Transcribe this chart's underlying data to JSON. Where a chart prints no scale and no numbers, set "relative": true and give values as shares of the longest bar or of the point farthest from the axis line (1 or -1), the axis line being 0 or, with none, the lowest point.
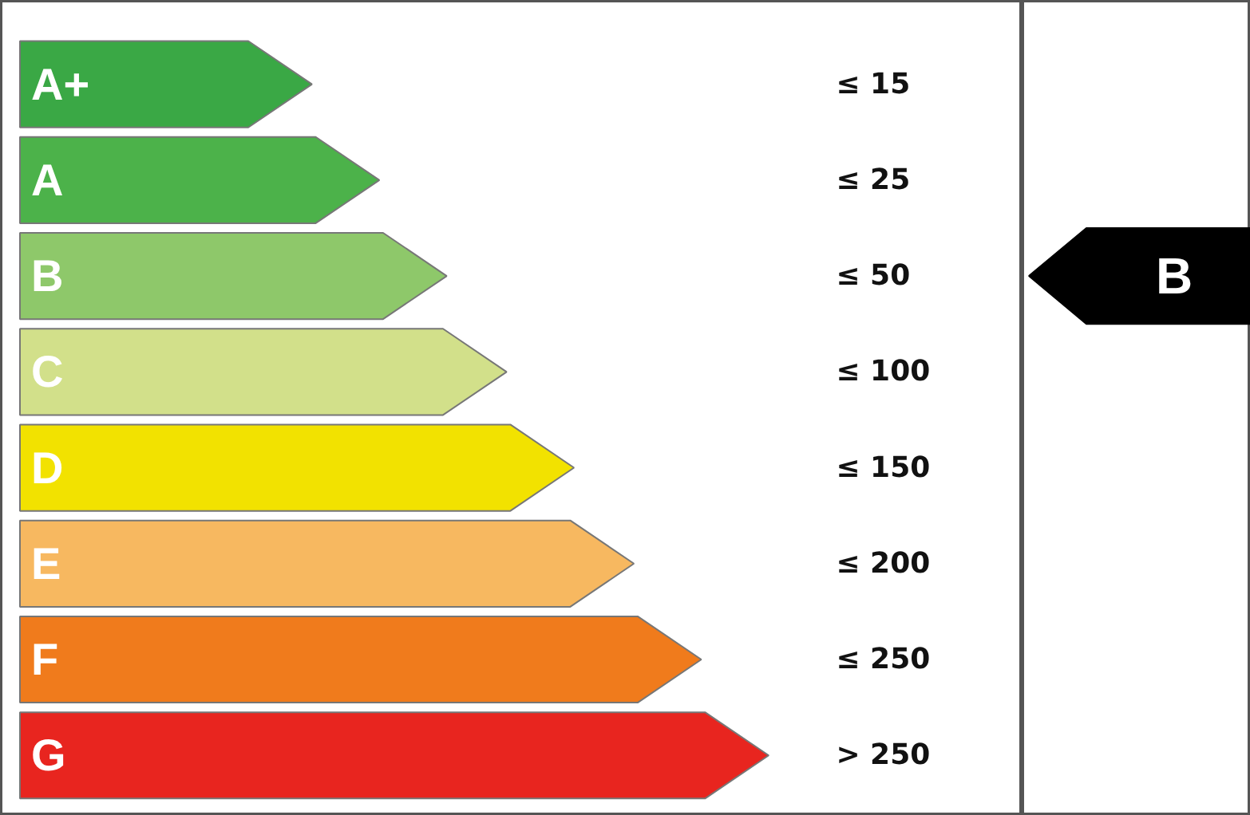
{
  "chart_data": {
    "type": "bar",
    "orientation": "horizontal",
    "relative": true,
    "categories": [
      "A+",
      "A",
      "B",
      "C",
      "D",
      "E",
      "F",
      "G"
    ],
    "values": [
      0.39,
      0.48,
      0.57,
      0.65,
      0.74,
      0.82,
      0.91,
      1
    ],
    "colors": [
      "#3aa845",
      "#4cb24a",
      "#8ec86a",
      "#d2e08a",
      "#f2e200",
      "#f7b860",
      "#f07b1c",
      "#e8251f"
    ],
    "needle": "B",
    "annotations": [
      "≤ 15",
      "≤ 25",
      "≤ 50",
      "≤ 100",
      "≤ 150",
      "≤ 200",
      "≤ 250",
      "> 250"
    ]
  }
}
